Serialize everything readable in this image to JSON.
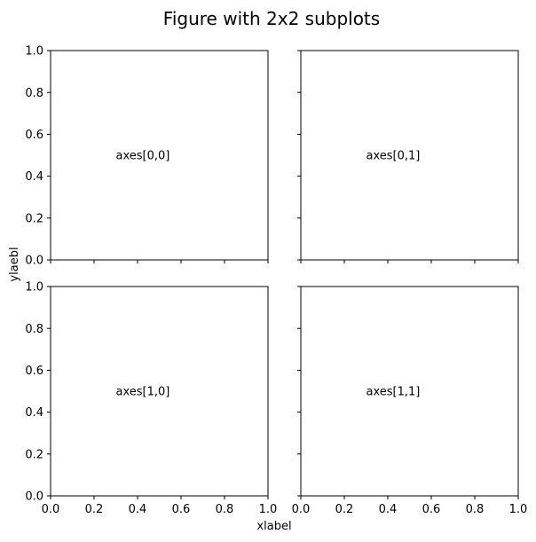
{
  "figure": {
    "title": "Figure with 2x2 subplots",
    "xlabel": "xlabel",
    "ylabel": "ylaebl"
  },
  "chart_data": [
    {
      "type": "scatter",
      "subplot": "axes[0,0]",
      "annotation": "axes[0,0]",
      "annotation_xy": [
        0.3,
        0.5
      ],
      "xlim": [
        0.0,
        1.0
      ],
      "ylim": [
        0.0,
        1.0
      ],
      "xticks": [
        0.0,
        0.2,
        0.4,
        0.6,
        0.8,
        1.0
      ],
      "yticks": [
        0.0,
        0.2,
        0.4,
        0.6,
        0.8,
        1.0
      ],
      "xticklabels": [
        "",
        "",
        "",
        "",
        "",
        ""
      ],
      "yticklabels": [
        "0.0",
        "0.2",
        "0.4",
        "0.6",
        "0.8",
        "1.0"
      ],
      "grid": false,
      "series": []
    },
    {
      "type": "scatter",
      "subplot": "axes[0,1]",
      "annotation": "axes[0,1]",
      "annotation_xy": [
        0.3,
        0.5
      ],
      "xlim": [
        0.0,
        1.0
      ],
      "ylim": [
        0.0,
        1.0
      ],
      "xticks": [
        0.0,
        0.2,
        0.4,
        0.6,
        0.8,
        1.0
      ],
      "yticks": [
        0.0,
        0.2,
        0.4,
        0.6,
        0.8,
        1.0
      ],
      "xticklabels": [
        "",
        "",
        "",
        "",
        "",
        ""
      ],
      "yticklabels": [
        "",
        "",
        "",
        "",
        "",
        ""
      ],
      "grid": false,
      "series": []
    },
    {
      "type": "scatter",
      "subplot": "axes[1,0]",
      "annotation": "axes[1,0]",
      "annotation_xy": [
        0.3,
        0.5
      ],
      "xlim": [
        0.0,
        1.0
      ],
      "ylim": [
        0.0,
        1.0
      ],
      "xticks": [
        0.0,
        0.2,
        0.4,
        0.6,
        0.8,
        1.0
      ],
      "yticks": [
        0.0,
        0.2,
        0.4,
        0.6,
        0.8,
        1.0
      ],
      "xticklabels": [
        "0.0",
        "0.2",
        "0.4",
        "0.6",
        "0.8",
        "1.0"
      ],
      "yticklabels": [
        "0.0",
        "0.2",
        "0.4",
        "0.6",
        "0.8",
        "1.0"
      ],
      "grid": false,
      "series": []
    },
    {
      "type": "scatter",
      "subplot": "axes[1,1]",
      "annotation": "axes[1,1]",
      "annotation_xy": [
        0.3,
        0.5
      ],
      "xlim": [
        0.0,
        1.0
      ],
      "ylim": [
        0.0,
        1.0
      ],
      "xticks": [
        0.0,
        0.2,
        0.4,
        0.6,
        0.8,
        1.0
      ],
      "yticks": [
        0.0,
        0.2,
        0.4,
        0.6,
        0.8,
        1.0
      ],
      "xticklabels": [
        "0.0",
        "0.2",
        "0.4",
        "0.6",
        "0.8",
        "1.0"
      ],
      "yticklabels": [
        "",
        "",
        "",
        "",
        "",
        ""
      ],
      "grid": false,
      "series": []
    }
  ]
}
